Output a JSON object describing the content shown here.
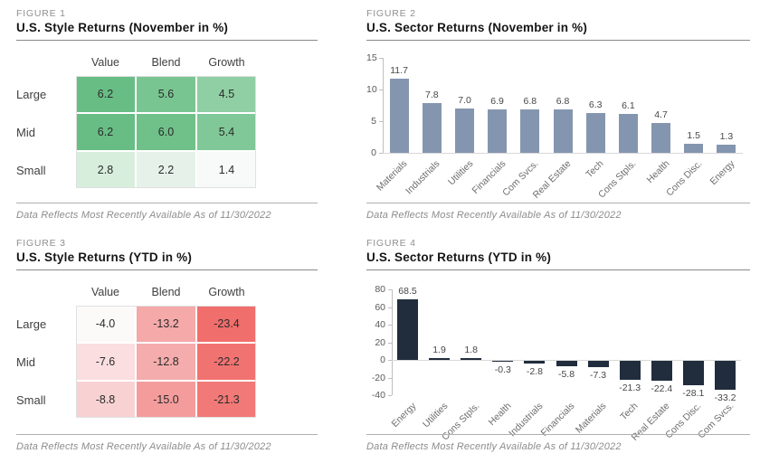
{
  "chart_data": [
    {
      "type": "table",
      "figure": "FIGURE 1",
      "title": "U.S. Style Returns (November in %)",
      "columns": [
        "Value",
        "Blend",
        "Growth"
      ],
      "rows": [
        "Large",
        "Mid",
        "Small"
      ],
      "values": [
        [
          6.2,
          5.6,
          4.5
        ],
        [
          6.2,
          6.0,
          5.4
        ],
        [
          2.8,
          2.2,
          1.4
        ]
      ],
      "cell_colors": [
        [
          "#68bd84",
          "#79c591",
          "#90cfa3"
        ],
        [
          "#68bd84",
          "#6fc089",
          "#80c897"
        ],
        [
          "#d7eedd",
          "#e6f2e9",
          "#f7faf8"
        ]
      ],
      "footnote": "Data Reflects Most Recently Available As of 11/30/2022"
    },
    {
      "type": "bar",
      "figure": "FIGURE 2",
      "title": "U.S. Sector Returns (November in %)",
      "categories": [
        "Materials",
        "Industrials",
        "Utilities",
        "Financials",
        "Com Svcs.",
        "Real Estate",
        "Tech",
        "Cons Stpls.",
        "Health",
        "Cons Disc.",
        "Energy"
      ],
      "values": [
        11.7,
        7.8,
        7.0,
        6.9,
        6.8,
        6.8,
        6.3,
        6.1,
        4.7,
        1.5,
        1.3
      ],
      "ylim": [
        0,
        15
      ],
      "yticks": [
        15,
        10,
        5,
        0
      ],
      "bar_color": "#8496af",
      "grid": false,
      "legend": "none",
      "footnote": "Data Reflects Most Recently Available As of 11/30/2022"
    },
    {
      "type": "table",
      "figure": "FIGURE 3",
      "title": "U.S. Style Returns (YTD in %)",
      "columns": [
        "Value",
        "Blend",
        "Growth"
      ],
      "rows": [
        "Large",
        "Mid",
        "Small"
      ],
      "values": [
        [
          -4.0,
          -13.2,
          -23.4
        ],
        [
          -7.6,
          -12.8,
          -22.2
        ],
        [
          -8.8,
          -15.0,
          -21.3
        ]
      ],
      "cell_colors": [
        [
          "#fcf9f9",
          "#f5a9a9",
          "#f06e6c"
        ],
        [
          "#fadee0",
          "#f5acac",
          "#f17371"
        ],
        [
          "#f8d2d3",
          "#f49c9c",
          "#f17977"
        ]
      ],
      "footnote": "Data Reflects Most Recently Available As of 11/30/2022"
    },
    {
      "type": "bar",
      "figure": "FIGURE 4",
      "title": "U.S. Sector Returns (YTD in %)",
      "categories": [
        "Energy",
        "Utilities",
        "Cons Stpls.",
        "Health",
        "Industrials",
        "Financials",
        "Materials",
        "Tech",
        "Real Estate",
        "Cons Disc.",
        "Com Svcs."
      ],
      "values": [
        68.5,
        1.9,
        1.8,
        -0.3,
        -2.8,
        -5.8,
        -7.3,
        -21.3,
        -22.4,
        -28.1,
        -33.2
      ],
      "ylim": [
        -40,
        80
      ],
      "yticks": [
        80,
        60,
        40,
        20,
        0,
        -20,
        -40
      ],
      "bar_color": "#212d3d",
      "grid": false,
      "legend": "none",
      "footnote": "Data Reflects Most Recently Available As of 11/30/2022"
    }
  ]
}
